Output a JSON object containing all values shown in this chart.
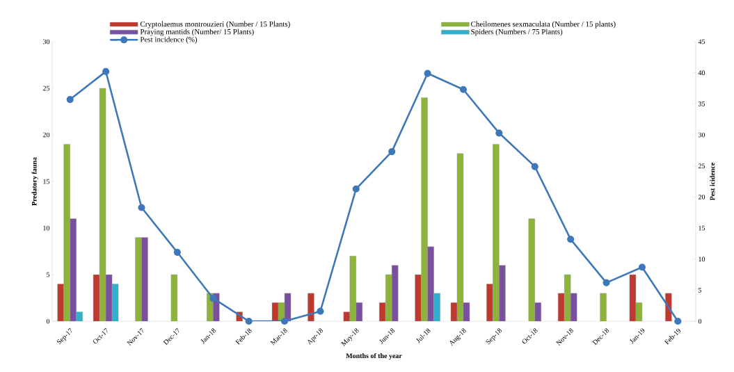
{
  "chart_data": {
    "type": "bar",
    "xlabel": "Months of the year",
    "ylabel": "Predatory fauna",
    "y2label": "Pest icidence",
    "categories": [
      "Sep-17",
      "Oct-17",
      "Nov-17",
      "Dec-17",
      "Jan-18",
      "Feb-18",
      "Mar-18",
      "Apr-18",
      "May-18",
      "Jun-18",
      "Jul-18",
      "Aug-18",
      "Sep-18",
      "Oct-18",
      "Nov-18",
      "Dec-18",
      "Jan-19",
      "Feb-19"
    ],
    "series": [
      {
        "name": "Cryptolaemus montrouzieri (Number / 15 Plants)",
        "color": "#c0392f",
        "values": [
          4,
          5,
          null,
          null,
          null,
          1,
          2,
          3,
          1,
          2,
          5,
          2,
          4,
          null,
          3,
          null,
          5,
          3
        ]
      },
      {
        "name": "Cheilomenes sexmaculata (Number / 15 plants)",
        "color": "#8db33a",
        "values": [
          19,
          25,
          9,
          5,
          3,
          null,
          2,
          null,
          7,
          5,
          24,
          18,
          19,
          11,
          5,
          3,
          2,
          null
        ]
      },
      {
        "name": "Praying mantids (Number/ 15 Plants)",
        "color": "#7a4f9f",
        "values": [
          11,
          5,
          9,
          null,
          3,
          null,
          3,
          null,
          2,
          6,
          8,
          2,
          6,
          2,
          3,
          null,
          null,
          null
        ]
      },
      {
        "name": "Spiders (Numbers / 75 Plants)",
        "color": "#2fb1cb",
        "values": [
          1,
          4,
          null,
          null,
          null,
          null,
          null,
          null,
          null,
          null,
          3,
          null,
          null,
          null,
          null,
          null,
          null,
          null
        ]
      },
      {
        "name": "Pest incidence (%)",
        "type": "line",
        "axis": "y2",
        "color": "#3f78b9",
        "values": [
          35.7,
          40.2,
          18.3,
          11.1,
          3.7,
          0,
          0,
          1.6,
          21.3,
          27.3,
          39.9,
          37.3,
          30.3,
          24.9,
          13.2,
          6.2,
          8.7,
          0
        ]
      }
    ],
    "ylim": [
      0,
      30
    ],
    "yticks": [
      0,
      5,
      10,
      15,
      20,
      25,
      30
    ],
    "y2lim": [
      0,
      45
    ],
    "y2ticks": [
      0,
      5,
      10,
      15,
      20,
      25,
      30,
      35,
      40,
      45
    ],
    "legend": "top",
    "marker": "circle"
  }
}
